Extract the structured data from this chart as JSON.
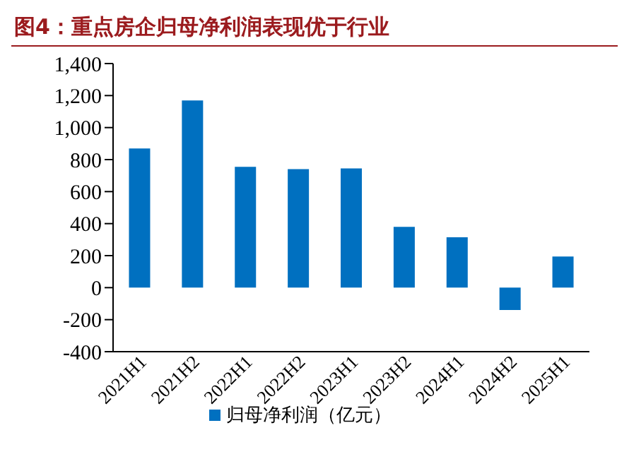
{
  "chart_data": {
    "type": "bar",
    "title": "图4：重点房企归母净利润表现优于行业",
    "categories": [
      "2021H1",
      "2021H2",
      "2022H1",
      "2022H2",
      "2023H1",
      "2023H2",
      "2024H1",
      "2024H2",
      "2025H1"
    ],
    "series": [
      {
        "name": "归母净利润（亿元）",
        "color": "#0070c0",
        "values": [
          870,
          1170,
          755,
          740,
          745,
          380,
          315,
          -140,
          195
        ]
      }
    ],
    "ylim": [
      -400,
      1400
    ],
    "yticks": [
      {
        "value": -400,
        "label": "-400"
      },
      {
        "value": -200,
        "label": "-200"
      },
      0,
      200,
      400,
      600,
      800,
      {
        "value": 1000,
        "label": "1,000"
      },
      {
        "value": 1200,
        "label": "1,200"
      },
      {
        "value": 1400,
        "label": "1,400"
      }
    ],
    "grid": false,
    "legend": "bottom"
  }
}
